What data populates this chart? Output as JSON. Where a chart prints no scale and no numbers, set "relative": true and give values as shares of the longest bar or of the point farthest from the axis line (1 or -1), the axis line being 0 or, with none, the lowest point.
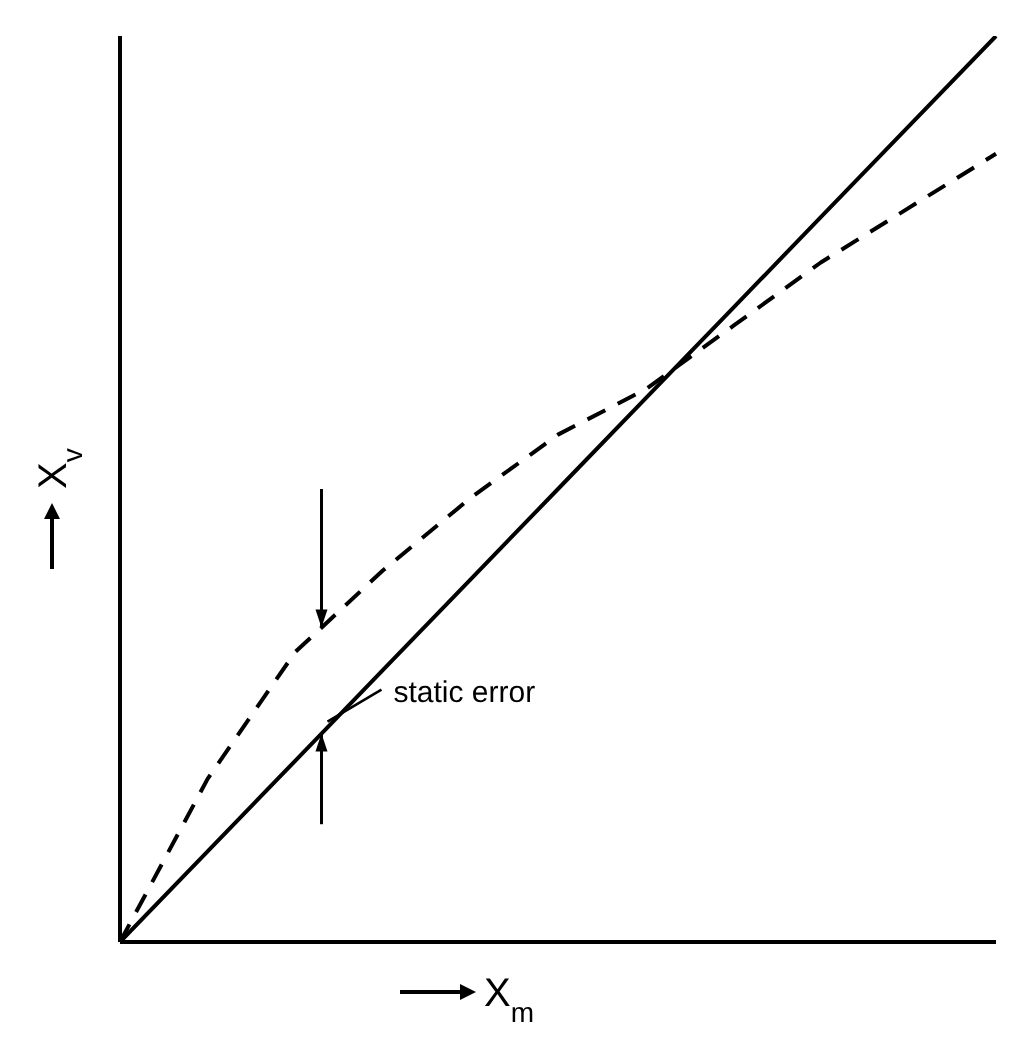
{
  "chart_data": {
    "type": "line",
    "relative": true,
    "xlabel": "X$_{m}$",
    "ylabel": "X$_{v}$",
    "categories": [
      null,
      null,
      null,
      null,
      null,
      null,
      null,
      null,
      null,
      null,
      null
    ],
    "series": [
      {
        "color": "#000000",
        "line_style": "solid",
        "values": [
          0,
          0.1,
          0.2,
          0.3,
          0.4,
          0.5,
          0.6,
          0.7,
          0.8,
          0.9,
          1
        ]
      },
      {
        "color": "#000000",
        "line_style": "dashed",
        "values": [
          0,
          0.18,
          0.32,
          0.41,
          0.49,
          0.56,
          0.61,
          0.68,
          0.75,
          0.81,
          0.87
        ]
      }
    ],
    "annotations": [
      "static error"
    ],
    "marker": "none",
    "grid": false,
    "legend": false
  }
}
